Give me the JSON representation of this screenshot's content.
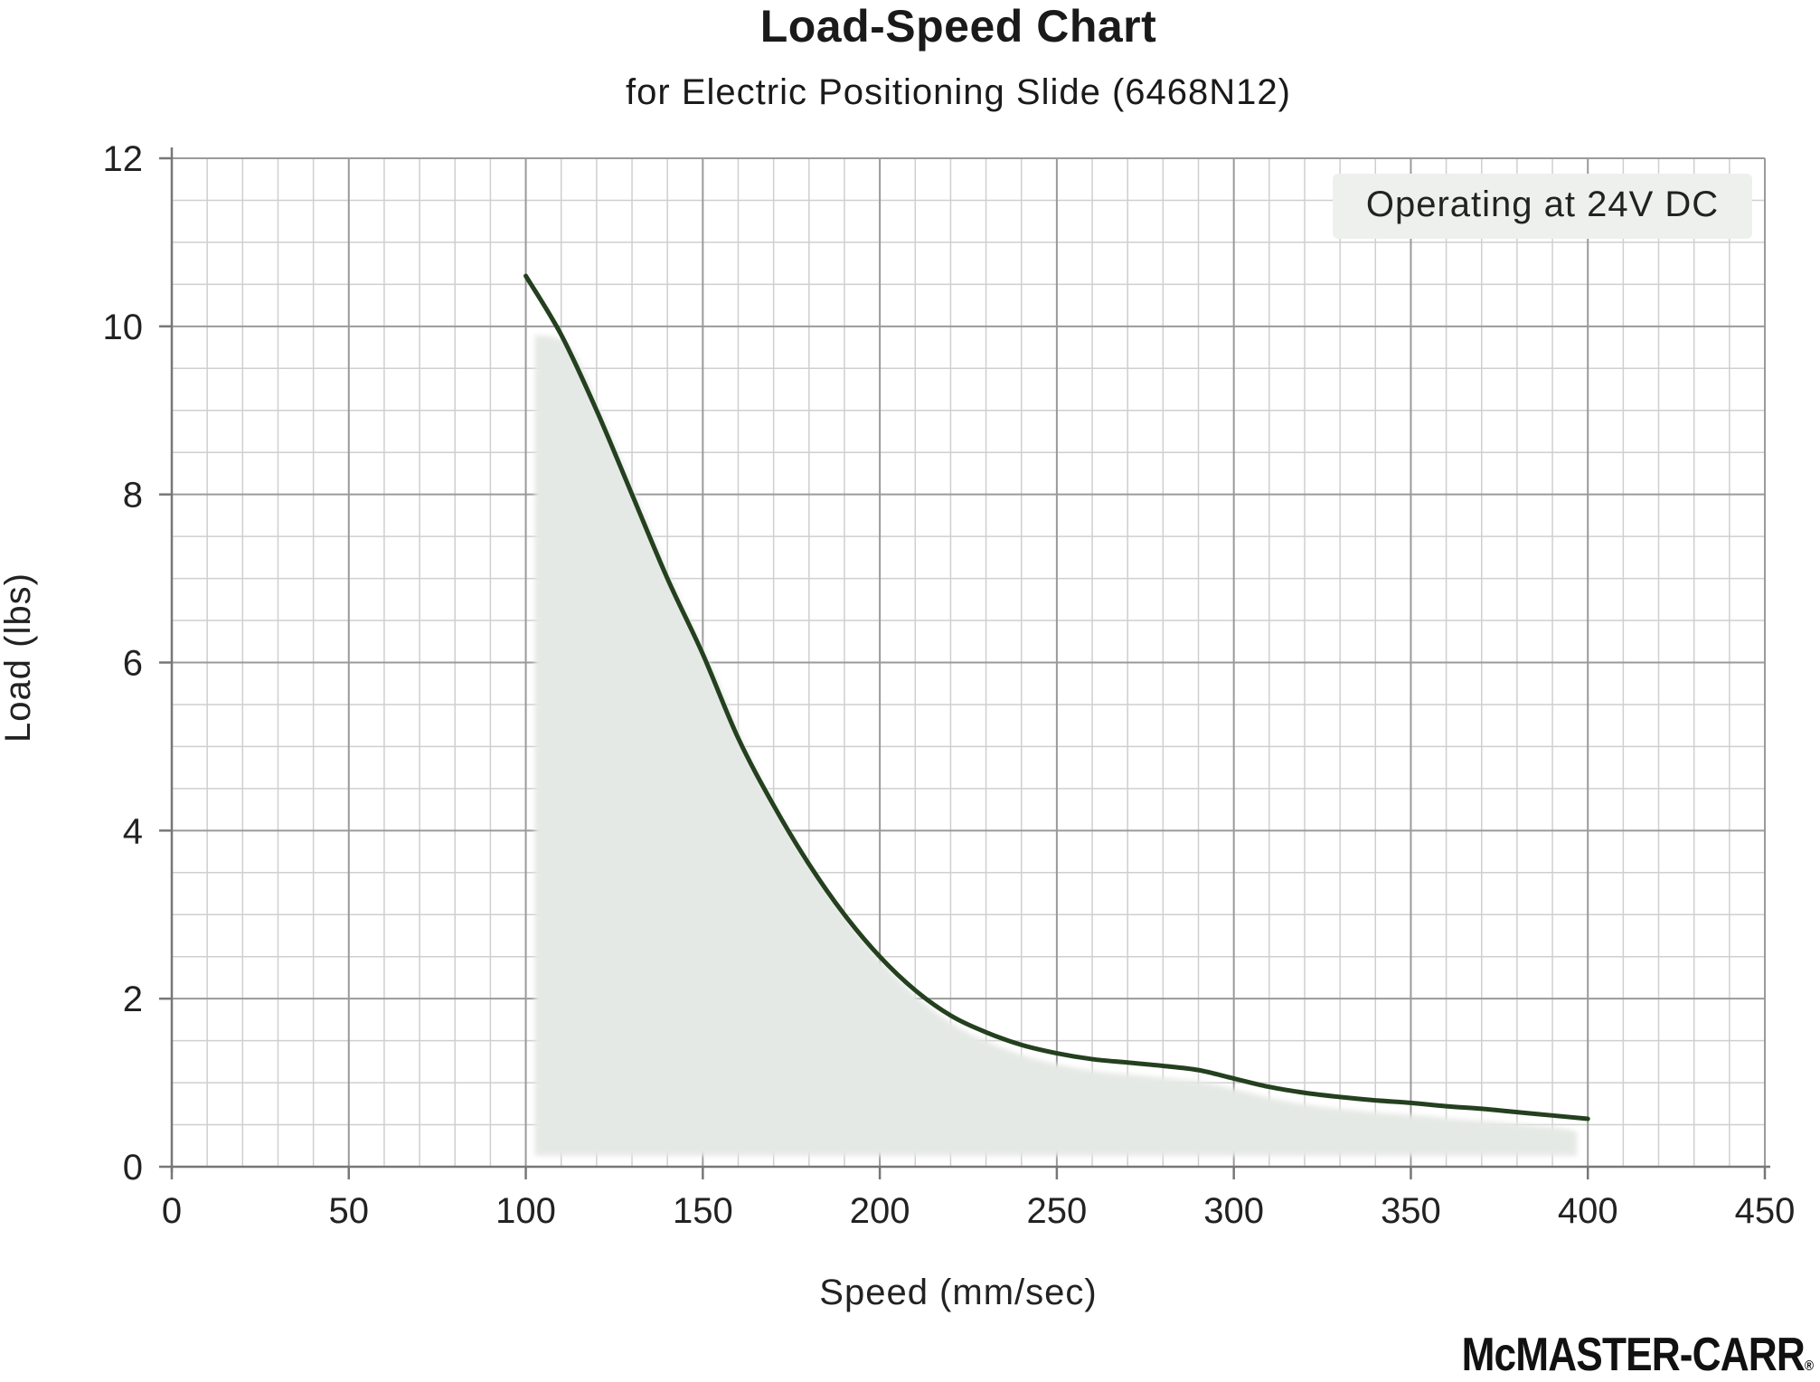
{
  "chart_data": {
    "type": "area",
    "title": "Load-Speed Chart",
    "subtitle": "for Electric Positioning Slide (6468N12)",
    "xlabel": "Speed (mm/sec)",
    "ylabel": "Load (lbs)",
    "xlim": [
      0,
      450
    ],
    "ylim": [
      0,
      12
    ],
    "x_ticks": [
      0,
      50,
      100,
      150,
      200,
      250,
      300,
      350,
      400,
      450
    ],
    "y_ticks": [
      0,
      2,
      4,
      6,
      8,
      10,
      12
    ],
    "grid": true,
    "series": [
      {
        "x": [
          100,
          110,
          120,
          130,
          140,
          150,
          160,
          170,
          180,
          190,
          200,
          210,
          220,
          230,
          240,
          250,
          260,
          270,
          280,
          290,
          300,
          310,
          320,
          330,
          340,
          350,
          360,
          370,
          380,
          390,
          400
        ],
        "y": [
          10.6,
          9.9,
          9.0,
          8.0,
          7.0,
          6.1,
          5.1,
          4.3,
          3.6,
          3.0,
          2.5,
          2.1,
          1.8,
          1.6,
          1.45,
          1.35,
          1.28,
          1.24,
          1.2,
          1.15,
          1.05,
          0.95,
          0.88,
          0.83,
          0.79,
          0.76,
          0.72,
          0.69,
          0.65,
          0.61,
          0.57
        ]
      }
    ],
    "annotation": "Operating at 24V DC",
    "colors": {
      "line": "#24401f",
      "fill": "#e5e9e5",
      "annotation_bg": "#eef0ee",
      "grid_major": "#9a9a9a",
      "grid_minor": "#cfcfcf"
    }
  },
  "brand": {
    "name": "McMASTER-CARR",
    "reg": "®"
  }
}
